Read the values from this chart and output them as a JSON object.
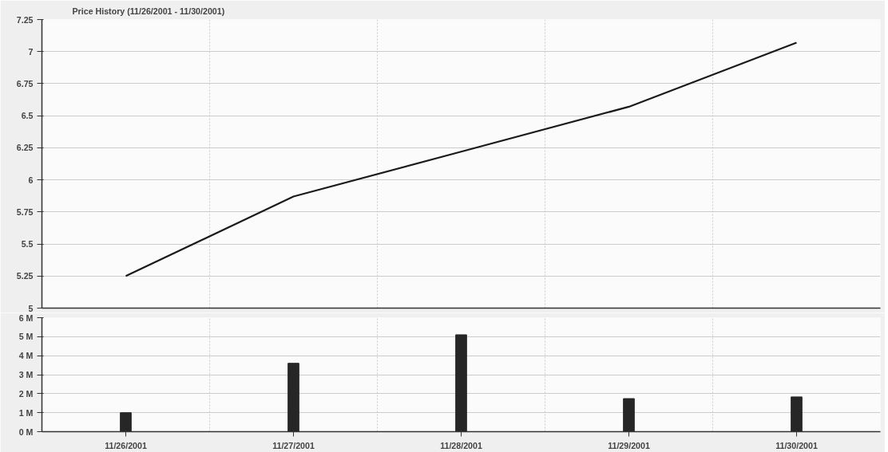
{
  "chart_data": [
    {
      "type": "line",
      "title": "Price History (11/26/2001 - 11/30/2001)",
      "categories": [
        null,
        null,
        null,
        null,
        null
      ],
      "series": [
        {
          "color": "#1a1a1a",
          "values": [
            5.25,
            5.87,
            6.22,
            6.57,
            7.07
          ]
        }
      ],
      "ylim": [
        5,
        7.25
      ],
      "yticks": [
        5,
        5.25,
        5.5,
        5.75,
        6,
        6.25,
        6.5,
        6.75,
        7,
        7.25
      ],
      "grid": true,
      "tick_labels": "y",
      "marker": "none",
      "line_style": "solid"
    },
    {
      "type": "bar",
      "categories": [
        "11/26/2001",
        "11/27/2001",
        "11/28/2001",
        "11/29/2001",
        "11/30/2001"
      ],
      "series": [
        {
          "color": "#262626",
          "values": [
            1.0,
            3.6,
            5.1,
            1.74,
            1.83
          ]
        }
      ],
      "ylim": [
        0,
        6
      ],
      "yticks": [
        {
          "value": 0,
          "label": "0 M"
        },
        {
          "value": 1,
          "label": "1 M"
        },
        {
          "value": 2,
          "label": "2 M"
        },
        {
          "value": 3,
          "label": "3 M"
        },
        {
          "value": 4,
          "label": "4 M"
        },
        {
          "value": 5,
          "label": "5 M"
        },
        {
          "value": 6,
          "label": "6 M"
        }
      ],
      "grid": true
    }
  ]
}
